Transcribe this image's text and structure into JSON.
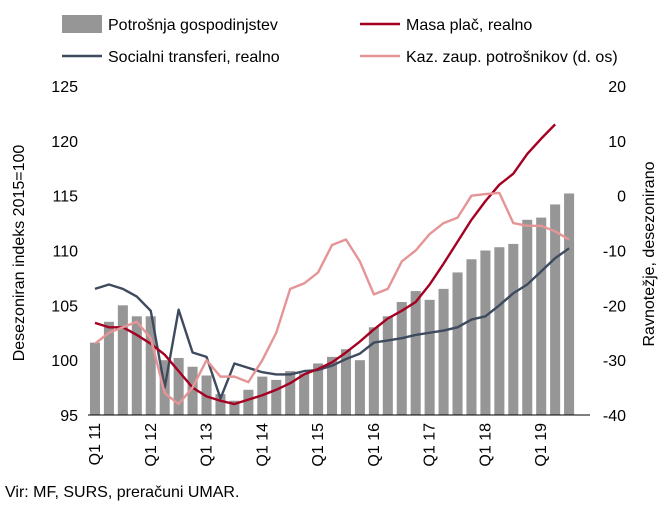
{
  "chart_data": {
    "type": "bar",
    "source": "Vir: MF, SURS, preračuni UMAR.",
    "ylabel": "Desezoniran indeks 2015=100",
    "y2label": "Ravnotežje, desezonirano",
    "ylim": [
      95,
      125
    ],
    "y2lim": [
      -40,
      20
    ],
    "yticks": [
      "95",
      "100",
      "105",
      "110",
      "115",
      "120",
      "125"
    ],
    "y2ticks": [
      "-40",
      "-30",
      "-20",
      "-10",
      "0",
      "10",
      "20"
    ],
    "xticklabels": [
      "Q1 11",
      "Q1 12",
      "Q1 13",
      "Q1 14",
      "Q1 15",
      "Q1 16",
      "Q1 17",
      "Q1 18",
      "Q1 19"
    ],
    "legend": "top",
    "quarters": [
      "Q1 11",
      "Q2 11",
      "Q3 11",
      "Q4 11",
      "Q1 12",
      "Q2 12",
      "Q3 12",
      "Q4 12",
      "Q1 13",
      "Q2 13",
      "Q3 13",
      "Q4 13",
      "Q1 14",
      "Q2 14",
      "Q3 14",
      "Q4 14",
      "Q1 15",
      "Q2 15",
      "Q3 15",
      "Q4 15",
      "Q1 16",
      "Q2 16",
      "Q3 16",
      "Q4 16",
      "Q1 17",
      "Q2 17",
      "Q3 17",
      "Q4 17",
      "Q1 18",
      "Q2 18",
      "Q3 18",
      "Q4 18",
      "Q1 19",
      "Q2 19",
      "Q3 19",
      "Q4 19"
    ],
    "series": [
      {
        "name": "Potrošnja gospodinjstev",
        "kind": "bar",
        "axis": "left",
        "color": "#969696",
        "values": [
          101.6,
          103.5,
          105.0,
          104.0,
          104.0,
          100.0,
          100.2,
          99.4,
          98.6,
          96.9,
          96.3,
          97.3,
          98.5,
          98.2,
          99.0,
          98.8,
          99.7,
          100.3,
          101.0,
          100.0,
          103.0,
          104.0,
          105.3,
          106.3,
          105.5,
          106.5,
          108.0,
          109.2,
          110.0,
          110.3,
          110.6,
          112.8,
          113.0,
          114.2,
          115.2
        ]
      },
      {
        "name": "Socialni transferi, realno",
        "kind": "line",
        "axis": "left",
        "color": "#3e4a5e",
        "values": [
          106.5,
          106.9,
          106.5,
          105.8,
          104.5,
          97.5,
          104.6,
          100.7,
          100.3,
          96.5,
          99.7,
          99.3,
          98.9,
          98.7,
          98.7,
          99.0,
          99.1,
          99.5,
          100.1,
          100.6,
          101.6,
          101.8,
          102.0,
          102.3,
          102.5,
          102.7,
          103.0,
          103.7,
          104.0,
          105.0,
          106.1,
          106.9,
          108.1,
          109.3,
          110.2
        ]
      },
      {
        "name": "Masa plač, realno",
        "kind": "line",
        "axis": "left",
        "color": "#a50021",
        "values": [
          103.4,
          103.0,
          103.0,
          102.3,
          101.5,
          100.5,
          99.0,
          97.5,
          96.7,
          96.3,
          96.0,
          96.4,
          96.8,
          97.3,
          97.9,
          98.7,
          99.2,
          99.8,
          100.7,
          101.7,
          102.8,
          103.8,
          104.5,
          105.3,
          106.9,
          108.8,
          110.8,
          112.8,
          114.5,
          116.0,
          117.0,
          118.8,
          120.2,
          121.5
        ]
      },
      {
        "name": "Kaz. zaup. potrošnikov (d. os)",
        "kind": "line",
        "axis": "right",
        "color": "#e59595",
        "values": [
          -27,
          -25,
          -24,
          -23,
          -26,
          -36,
          -38,
          -35,
          -30,
          -33,
          -33,
          -34,
          -30,
          -25,
          -17,
          -16,
          -14,
          -9,
          -8,
          -12,
          -18,
          -17,
          -12,
          -10,
          -7,
          -5,
          -4,
          0,
          0.3,
          0.5,
          -5,
          -5.5,
          -5.5,
          -6.5,
          -8
        ]
      }
    ]
  }
}
